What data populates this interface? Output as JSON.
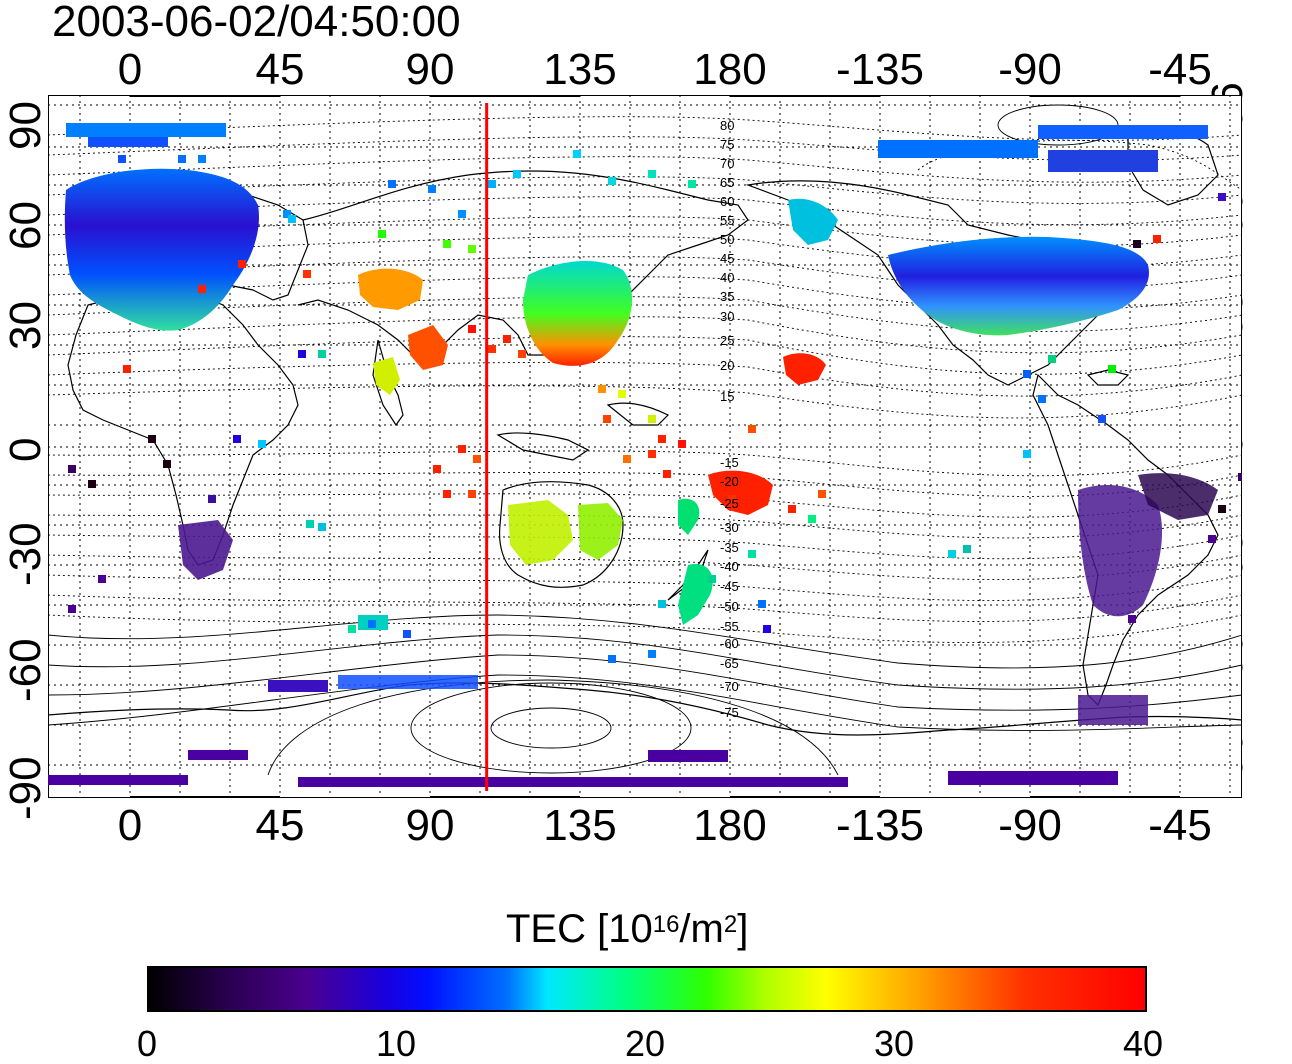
{
  "header": {
    "timestamp": "2003-06-02/04:50:00"
  },
  "axes": {
    "lon_ticks": [
      "0",
      "45",
      "90",
      "135",
      "180",
      "-135",
      "-90",
      "-45"
    ],
    "lat_ticks": [
      "90",
      "60",
      "30",
      "0",
      "-30",
      "-60",
      "-90"
    ]
  },
  "contour_labels": {
    "north": [
      "80",
      "75",
      "70",
      "65",
      "60",
      "55",
      "50",
      "45",
      "40",
      "35",
      "30",
      "25",
      "20",
      "15"
    ],
    "south": [
      "-15",
      "-20",
      "-25",
      "-30",
      "-35",
      "-40",
      "-45",
      "-50",
      "-55",
      "-60",
      "-65",
      "-70",
      "-75"
    ]
  },
  "marker": {
    "longitude": 107,
    "color": "#ff0000"
  },
  "colorbar": {
    "title_prefix": "TEC  [10",
    "exp1": "16",
    "mid": "/m",
    "exp2": "2",
    "suffix": "]",
    "ticks": [
      "0",
      "10",
      "20",
      "30",
      "40"
    ],
    "colors": [
      "#000000",
      "#4a0090",
      "#0010ff",
      "#00e8ff",
      "#30ff00",
      "#ffff00",
      "#ff9a00",
      "#ff0000"
    ]
  }
}
